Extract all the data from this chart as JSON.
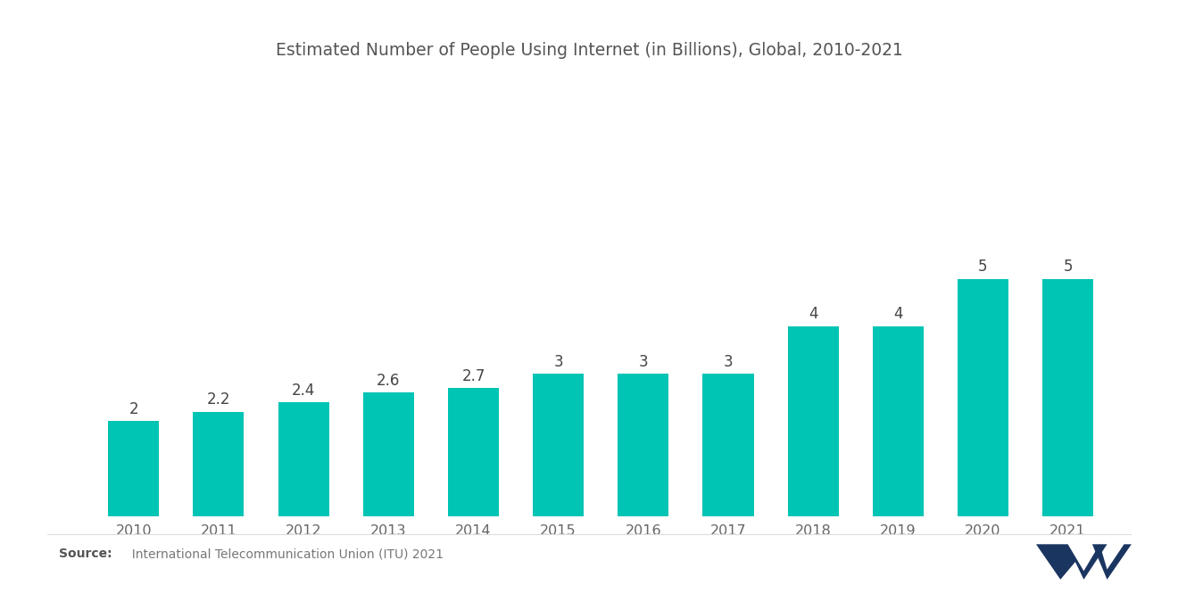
{
  "title": "Estimated Number of People Using Internet (in Billions), Global, 2010-2021",
  "years": [
    2010,
    2011,
    2012,
    2013,
    2014,
    2015,
    2016,
    2017,
    2018,
    2019,
    2020,
    2021
  ],
  "values": [
    2.0,
    2.2,
    2.4,
    2.6,
    2.7,
    3.0,
    3.0,
    3.0,
    4.0,
    4.0,
    5.0,
    5.0
  ],
  "labels": [
    "2",
    "2.2",
    "2.4",
    "2.6",
    "2.7",
    "3",
    "3",
    "3",
    "4",
    "4",
    "5",
    "5"
  ],
  "bar_color": "#00C4B4",
  "background_color": "#FFFFFF",
  "title_fontsize": 13.5,
  "label_fontsize": 12,
  "tick_fontsize": 11.5,
  "ylim": [
    0,
    6.5
  ],
  "bar_width": 0.6
}
